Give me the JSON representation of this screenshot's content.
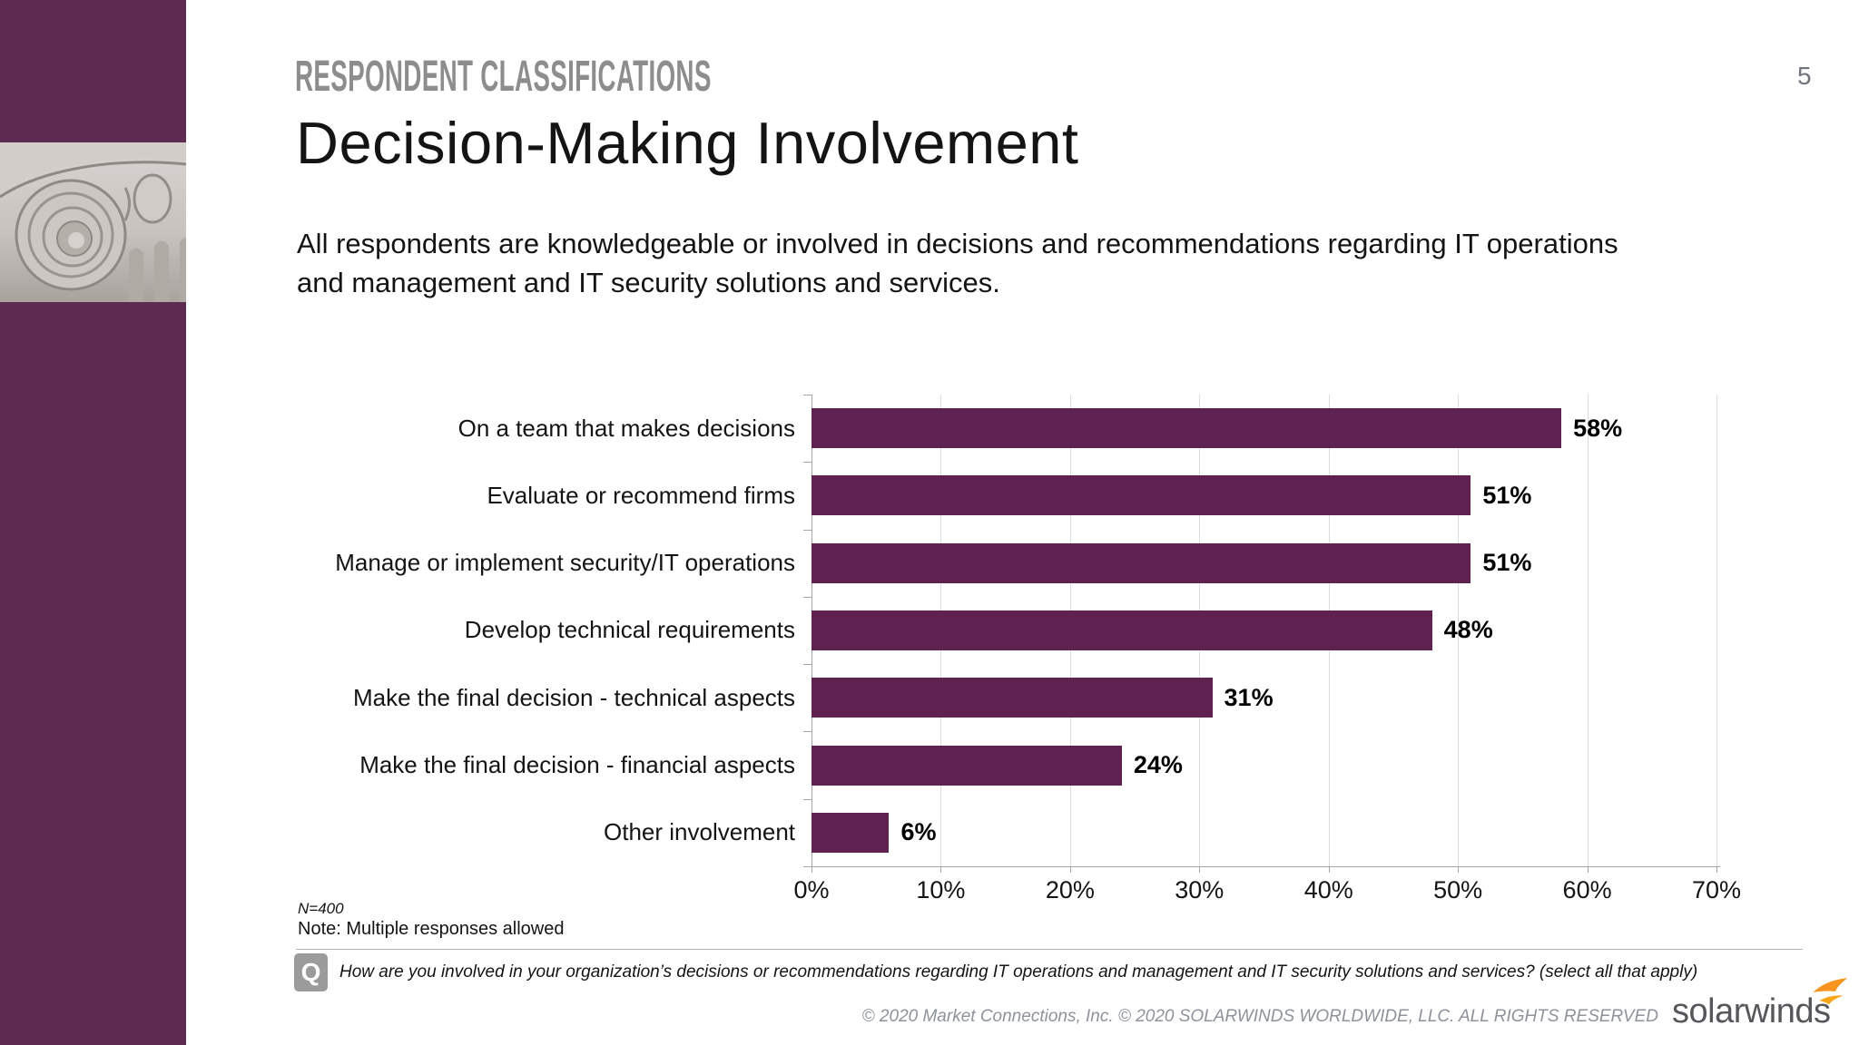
{
  "header": {
    "eyebrow": "RESPONDENT CLASSIFICATIONS",
    "page_number": "5"
  },
  "title": "Decision-Making Involvement",
  "subtitle": "All respondents are knowledgeable or involved in decisions and recommendations regarding IT operations and management and IT security solutions and services.",
  "chart_data": {
    "type": "bar",
    "orientation": "horizontal",
    "title": "",
    "categories": [
      "On a team that makes decisions",
      "Evaluate or recommend firms",
      "Manage or implement security/IT operations",
      "Develop technical requirements",
      "Make the final decision - technical aspects",
      "Make the final decision - financial aspects",
      "Other involvement"
    ],
    "values": [
      58,
      51,
      51,
      48,
      31,
      24,
      6
    ],
    "value_labels": [
      "58%",
      "51%",
      "51%",
      "48%",
      "31%",
      "24%",
      "6%"
    ],
    "xlim": [
      0,
      70
    ],
    "x_tick_labels": [
      "0%",
      "10%",
      "20%",
      "30%",
      "40%",
      "50%",
      "60%",
      "70%"
    ],
    "grid": true,
    "legend": false,
    "bar_color": "#5e2150"
  },
  "footnotes": {
    "sample": "N=400",
    "note": "Note: Multiple responses allowed"
  },
  "question": {
    "badge": "Q",
    "text": "How are you involved in your organization’s decisions or recommendations regarding IT operations and management and IT security solutions and services? (select all that apply)"
  },
  "footer": {
    "copyright": "© 2020 Market Connections, Inc. © 2020 SOLARWINDS WORLDWIDE, LLC. ALL RIGHTS RESERVED",
    "logo_text": "solarwinds"
  },
  "colors": {
    "sidebar": "#5d2a52",
    "bar": "#5e2150",
    "accent_orange": "#f7941d",
    "eyebrow_gray": "#8d8d8d",
    "gridline": "#dcdcdc",
    "axis": "#a6a6a6"
  }
}
